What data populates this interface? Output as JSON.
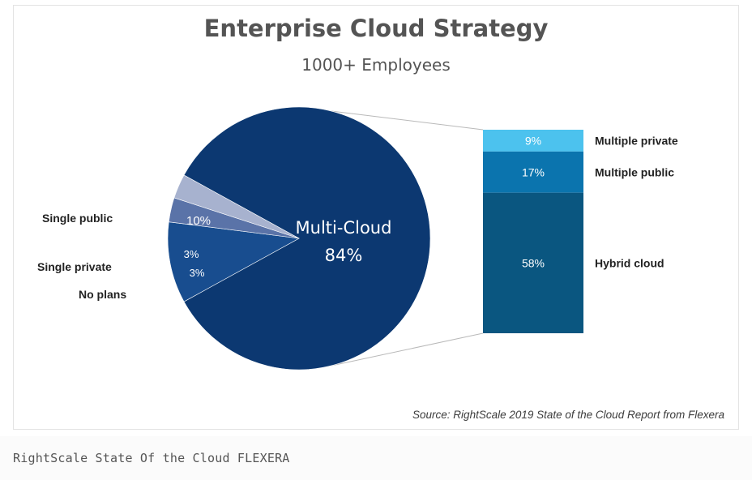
{
  "chart_data": {
    "type": "bar-of-pie",
    "title": "Enterprise Cloud Strategy",
    "subtitle": "1000+ Employees",
    "source": "Source: RightScale 2019 State of the Cloud Report from Flexera",
    "pie": {
      "slices": [
        {
          "name": "Multi-Cloud",
          "value": 84,
          "label": "Multi-Cloud",
          "value_label": "84%",
          "color": "#0c3871"
        },
        {
          "name": "Single public",
          "value": 10,
          "value_label": "10%",
          "color": "#184d8f"
        },
        {
          "name": "Single private",
          "value": 3,
          "value_label": "3%",
          "color": "#5a73a8"
        },
        {
          "name": "No plans",
          "value": 3,
          "value_label": "3%",
          "color": "#a7b2cf"
        }
      ]
    },
    "bar": {
      "segments": [
        {
          "name": "Multiple private",
          "value": 9,
          "value_label": "9%",
          "color": "#4cc2ee"
        },
        {
          "name": "Multiple public",
          "value": 17,
          "value_label": "17%",
          "color": "#0b74ae"
        },
        {
          "name": "Hybrid cloud",
          "value": 58,
          "value_label": "58%",
          "color": "#0a5680"
        }
      ]
    }
  },
  "caption": "RightScale State Of the Cloud  FLEXERA"
}
